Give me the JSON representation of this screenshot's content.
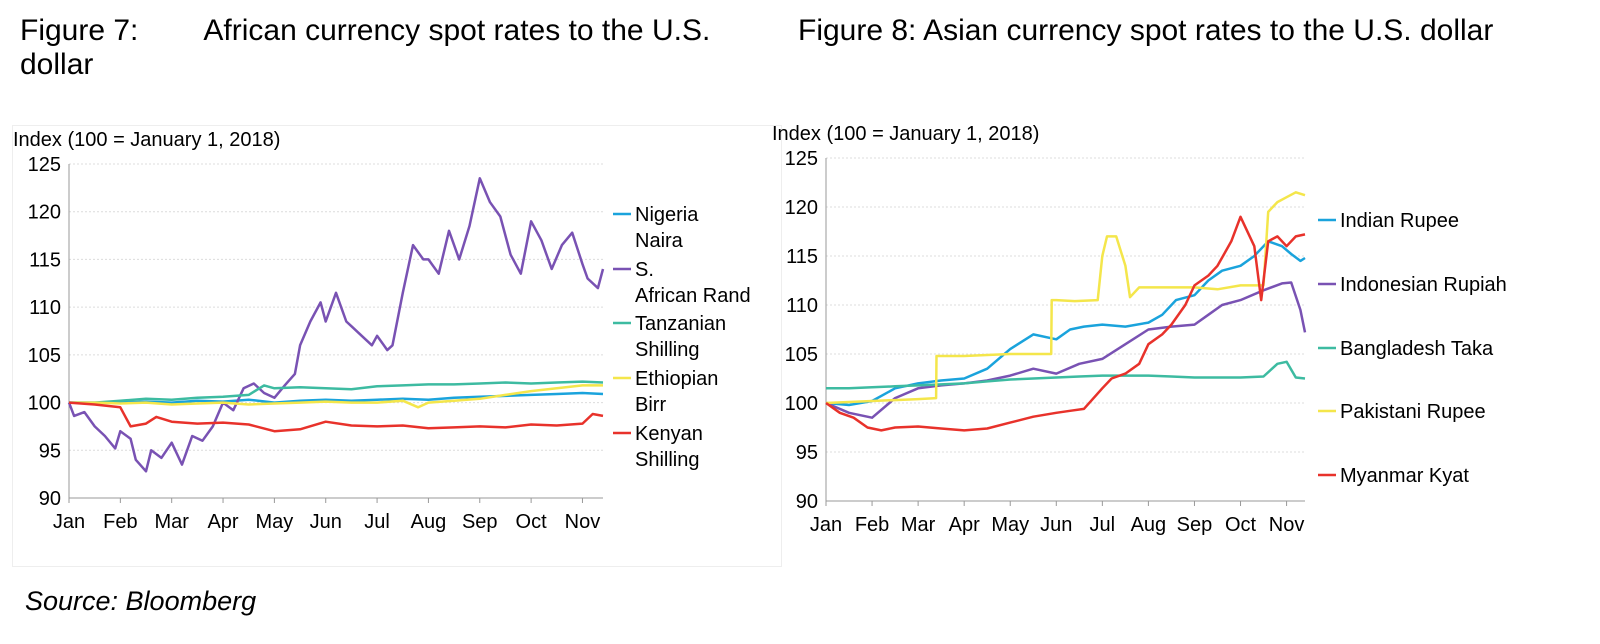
{
  "titles": {
    "left": "Figure 7:        African currency spot rates to the U.S. dollar",
    "right": "Figure 8: Asian currency spot rates to the U.S. dollar"
  },
  "source": "Source: Bloomberg",
  "chart_data": [
    {
      "type": "line",
      "ylabel": "Index (100 = January 1, 2018)",
      "ylim": [
        90,
        125
      ],
      "yticks": [
        90,
        95,
        100,
        105,
        110,
        115,
        120,
        125
      ],
      "xlim": [
        0,
        10.4
      ],
      "categories": [
        "Jan",
        "Feb",
        "Mar",
        "Apr",
        "May",
        "Jun",
        "Jul",
        "Aug",
        "Sep",
        "Oct",
        "Nov"
      ],
      "grid": true,
      "legend": "right",
      "series": [
        {
          "name": "Nigeria Naira",
          "color": "#1aa3dc",
          "x": [
            0,
            0.5,
            1,
            1.5,
            2,
            2.5,
            3,
            3.5,
            4,
            4.5,
            5,
            5.5,
            6,
            6.5,
            7,
            7.5,
            8,
            8.5,
            9,
            9.5,
            10,
            10.4
          ],
          "y": [
            100,
            100,
            100,
            100.1,
            100,
            100.2,
            100.1,
            100.3,
            100,
            100.2,
            100.3,
            100.2,
            100.3,
            100.4,
            100.3,
            100.5,
            100.6,
            100.7,
            100.8,
            100.9,
            101,
            100.9
          ]
        },
        {
          "name": "S. African Rand",
          "color": "#7952b3",
          "x": [
            0,
            0.1,
            0.3,
            0.5,
            0.7,
            0.9,
            1.0,
            1.2,
            1.3,
            1.5,
            1.6,
            1.8,
            2.0,
            2.2,
            2.4,
            2.6,
            2.8,
            3.0,
            3.2,
            3.4,
            3.6,
            3.8,
            4.0,
            4.2,
            4.4,
            4.5,
            4.7,
            4.9,
            5.0,
            5.2,
            5.4,
            5.5,
            5.7,
            5.9,
            6.0,
            6.2,
            6.3,
            6.5,
            6.7,
            6.9,
            7.0,
            7.2,
            7.4,
            7.6,
            7.8,
            8.0,
            8.2,
            8.4,
            8.6,
            8.8,
            9.0,
            9.2,
            9.4,
            9.6,
            9.8,
            10.0,
            10.1,
            10.3,
            10.4
          ],
          "y": [
            100,
            98.6,
            99,
            97.5,
            96.5,
            95.2,
            97,
            96.2,
            94,
            92.8,
            95,
            94.2,
            95.8,
            93.5,
            96.5,
            96,
            97.5,
            100,
            99.2,
            101.5,
            102,
            101,
            100.5,
            101.8,
            103,
            106,
            108.5,
            110.5,
            108.5,
            111.5,
            108.5,
            108,
            107,
            106,
            107,
            105.5,
            106,
            111.5,
            116.5,
            115,
            115,
            113.5,
            118,
            115,
            118.5,
            123.5,
            121,
            119.5,
            115.5,
            113.5,
            119,
            117,
            114,
            116.5,
            117.8,
            114.5,
            113,
            112,
            114
          ]
        },
        {
          "name": "Tanzanian Shilling",
          "color": "#3dbba1",
          "x": [
            0,
            0.5,
            1,
            1.5,
            2,
            2.5,
            3,
            3.5,
            3.8,
            4,
            4.5,
            5,
            5.5,
            6,
            6.5,
            7,
            7.5,
            8,
            8.5,
            9,
            9.5,
            10,
            10.4
          ],
          "y": [
            100,
            100,
            100.2,
            100.4,
            100.3,
            100.5,
            100.6,
            100.8,
            101.8,
            101.5,
            101.6,
            101.5,
            101.4,
            101.7,
            101.8,
            101.9,
            101.9,
            102,
            102.1,
            102,
            102.1,
            102.2,
            102.1
          ]
        },
        {
          "name": "Ethiopian Birr",
          "color": "#f4e64b",
          "x": [
            0,
            0.5,
            1,
            1.5,
            2,
            2.5,
            3,
            3.5,
            4,
            4.5,
            5,
            5.5,
            6,
            6.5,
            6.8,
            7,
            7.5,
            8,
            8.5,
            9,
            9.5,
            10,
            10.4
          ],
          "y": [
            100,
            100,
            99.9,
            100,
            99.8,
            99.9,
            100,
            99.8,
            99.9,
            100,
            100.1,
            100,
            100,
            100.2,
            99.5,
            100,
            100.2,
            100.4,
            100.8,
            101.2,
            101.5,
            101.8,
            101.8
          ]
        },
        {
          "name": "Kenyan Shilling",
          "color": "#e8322b",
          "x": [
            0,
            0.5,
            1,
            1.2,
            1.5,
            1.7,
            2,
            2.5,
            3,
            3.5,
            4,
            4.5,
            5,
            5.5,
            6,
            6.5,
            7,
            7.5,
            8,
            8.5,
            9,
            9.5,
            10,
            10.2,
            10.4
          ],
          "y": [
            100,
            99.8,
            99.5,
            97.5,
            97.8,
            98.5,
            98,
            97.8,
            97.9,
            97.7,
            97,
            97.2,
            98,
            97.6,
            97.5,
            97.6,
            97.3,
            97.4,
            97.5,
            97.4,
            97.7,
            97.6,
            97.8,
            98.8,
            98.6
          ]
        }
      ]
    },
    {
      "type": "line",
      "ylabel": "Index (100 = January 1, 2018)",
      "ylim": [
        90,
        125
      ],
      "yticks": [
        90,
        95,
        100,
        105,
        110,
        115,
        120,
        125
      ],
      "xlim": [
        0,
        10.4
      ],
      "categories": [
        "Jan",
        "Feb",
        "Mar",
        "Apr",
        "May",
        "Jun",
        "Jul",
        "Aug",
        "Sep",
        "Oct",
        "Nov"
      ],
      "grid": true,
      "legend": "right",
      "series": [
        {
          "name": "Indian Rupee",
          "color": "#1aa3dc",
          "x": [
            0,
            0.5,
            1,
            1.5,
            2,
            2.5,
            3,
            3.5,
            4,
            4.5,
            5,
            5.3,
            5.6,
            6,
            6.5,
            7,
            7.3,
            7.6,
            8,
            8.3,
            8.6,
            9,
            9.3,
            9.6,
            9.9,
            10.1,
            10.3,
            10.4
          ],
          "y": [
            100,
            99.8,
            100.2,
            101.5,
            102,
            102.3,
            102.5,
            103.5,
            105.5,
            107,
            106.5,
            107.5,
            107.8,
            108,
            107.8,
            108.2,
            109,
            110.5,
            111,
            112.5,
            113.5,
            114,
            115,
            116.5,
            116,
            115.2,
            114.5,
            114.8
          ]
        },
        {
          "name": "Indonesian Rupiah",
          "color": "#7952b3",
          "x": [
            0,
            0.5,
            1,
            1.5,
            2,
            2.5,
            3,
            3.5,
            4,
            4.5,
            5,
            5.5,
            6,
            6.5,
            7,
            7.5,
            8,
            8.3,
            8.6,
            9,
            9.5,
            9.9,
            10.1,
            10.3,
            10.4
          ],
          "y": [
            100,
            99,
            98.5,
            100.5,
            101.5,
            101.8,
            102,
            102.3,
            102.8,
            103.5,
            103,
            104,
            104.5,
            106,
            107.5,
            107.8,
            108,
            109,
            110,
            110.5,
            111.5,
            112.2,
            112.3,
            109.5,
            107.2
          ]
        },
        {
          "name": "Bangladesh Taka",
          "color": "#3dbba1",
          "x": [
            0,
            0.5,
            1,
            1.5,
            2,
            2.5,
            3,
            3.5,
            4,
            4.5,
            5,
            5.5,
            6,
            6.5,
            7,
            7.5,
            8,
            8.5,
            9,
            9.5,
            9.8,
            10,
            10.2,
            10.4
          ],
          "y": [
            101.5,
            101.5,
            101.6,
            101.7,
            101.8,
            101.9,
            102,
            102.2,
            102.4,
            102.5,
            102.6,
            102.7,
            102.8,
            102.8,
            102.8,
            102.7,
            102.6,
            102.6,
            102.6,
            102.7,
            104,
            104.2,
            102.6,
            102.5
          ]
        },
        {
          "name": "Pakistani Rupee",
          "color": "#f4e64b",
          "x": [
            0,
            0.5,
            1,
            1.5,
            2,
            2.39,
            2.4,
            3,
            3.5,
            4,
            4.5,
            4.89,
            4.9,
            5.0,
            5.4,
            5.9,
            6.0,
            6.1,
            6.3,
            6.5,
            6.6,
            6.8,
            7.0,
            7.5,
            8,
            8.5,
            9,
            9.5,
            9.6,
            9.8,
            10,
            10.2,
            10.4
          ],
          "y": [
            100,
            100.1,
            100.2,
            100.3,
            100.4,
            100.5,
            104.8,
            104.8,
            104.9,
            105,
            105,
            105,
            110.5,
            110.5,
            110.4,
            110.5,
            115,
            117,
            117,
            114,
            110.8,
            111.8,
            111.8,
            111.8,
            111.8,
            111.6,
            112,
            112,
            119.5,
            120.5,
            121,
            121.5,
            121.2
          ]
        },
        {
          "name": "Myanmar Kyat",
          "color": "#e8322b",
          "x": [
            0,
            0.3,
            0.6,
            0.9,
            1.2,
            1.5,
            2,
            2.5,
            3,
            3.5,
            4,
            4.5,
            5,
            5.3,
            5.6,
            6.0,
            6.2,
            6.5,
            6.8,
            7.0,
            7.3,
            7.5,
            7.8,
            8,
            8.3,
            8.5,
            8.8,
            9.0,
            9.3,
            9.45,
            9.6,
            9.8,
            10,
            10.2,
            10.4
          ],
          "y": [
            100,
            99,
            98.5,
            97.5,
            97.2,
            97.5,
            97.6,
            97.4,
            97.2,
            97.4,
            98,
            98.6,
            99,
            99.2,
            99.4,
            101.5,
            102.5,
            103,
            104,
            106,
            107,
            108,
            110,
            112,
            113,
            114,
            116.5,
            119,
            116,
            110.5,
            116.5,
            117,
            116,
            117,
            117.2
          ]
        }
      ]
    }
  ]
}
